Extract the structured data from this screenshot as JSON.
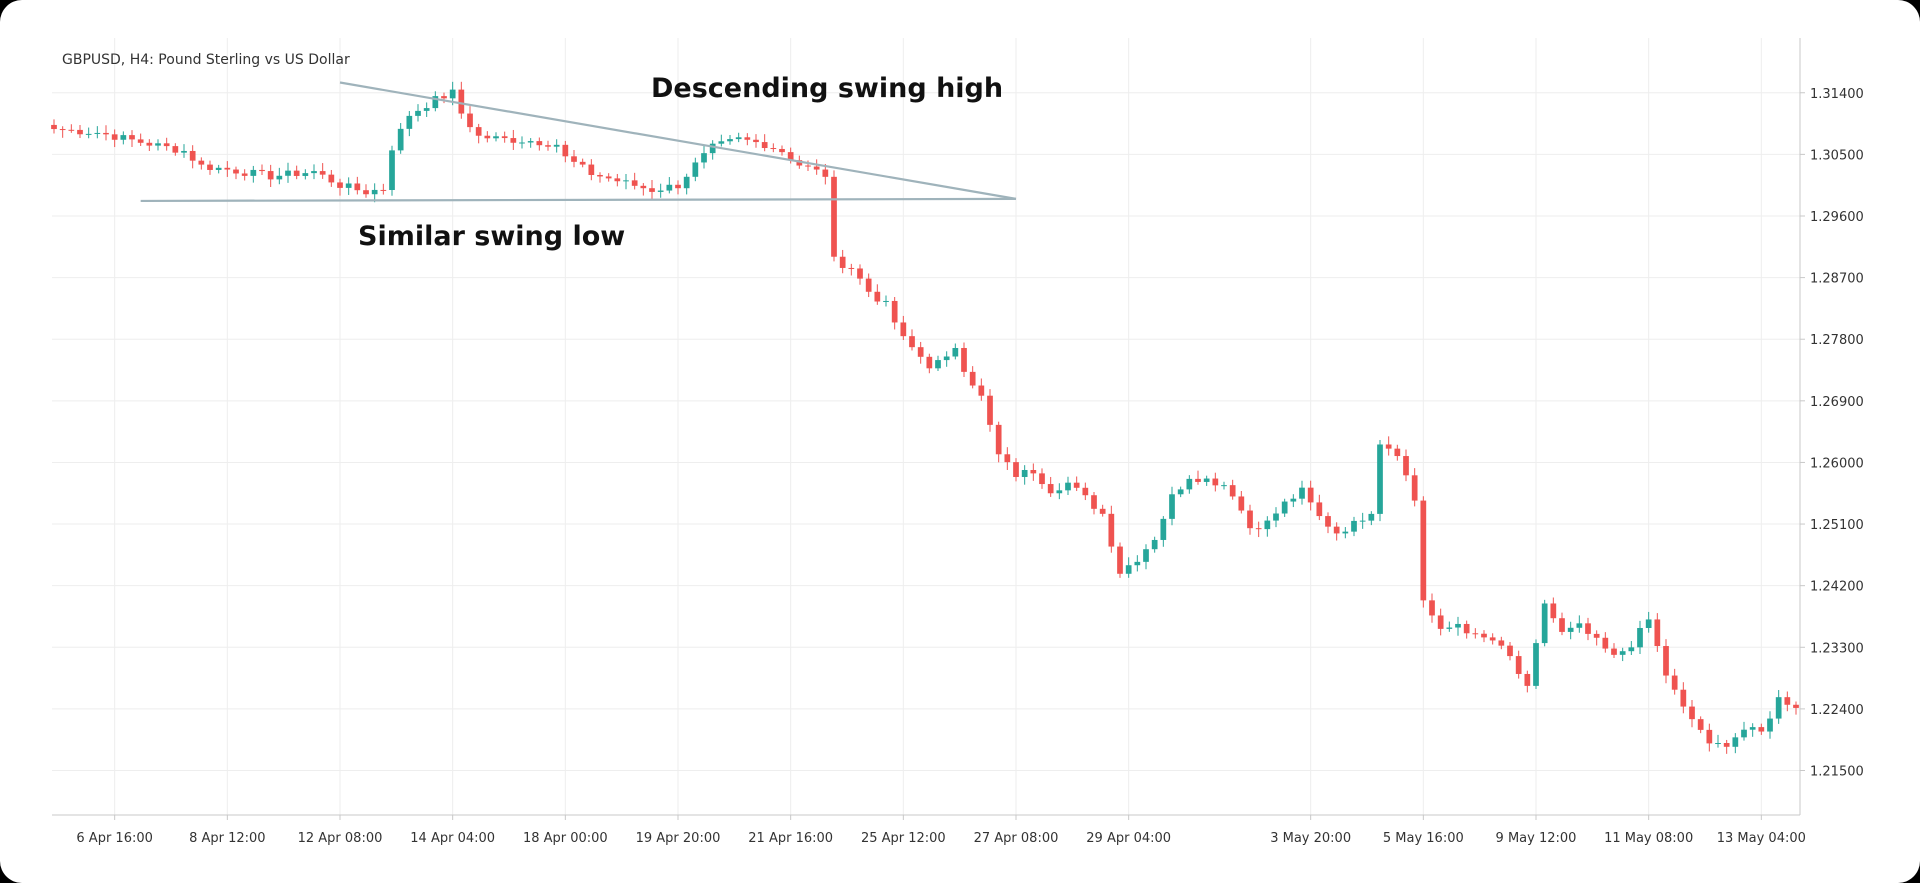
{
  "chart_data": {
    "type": "candlestick",
    "title": "GBPUSD, H4: Pound Sterling vs US Dollar",
    "y_axis": {
      "position": "right",
      "ylim": [
        1.2085,
        1.322
      ],
      "ticks": [
        "1.31400",
        "1.30500",
        "1.29600",
        "1.28700",
        "1.27800",
        "1.26900",
        "1.26000",
        "1.25100",
        "1.24200",
        "1.23300",
        "1.22400",
        "1.21500"
      ]
    },
    "x_axis": {
      "bar_count": 202,
      "ticks": [
        {
          "label": "6 Apr 16:00",
          "bar": 7
        },
        {
          "label": "8 Apr 12:00",
          "bar": 20
        },
        {
          "label": "12 Apr 08:00",
          "bar": 33
        },
        {
          "label": "14 Apr 04:00",
          "bar": 46
        },
        {
          "label": "18 Apr 00:00",
          "bar": 59
        },
        {
          "label": "19 Apr 20:00",
          "bar": 72
        },
        {
          "label": "21 Apr 16:00",
          "bar": 85
        },
        {
          "label": "25 Apr 12:00",
          "bar": 98
        },
        {
          "label": "27 Apr 08:00",
          "bar": 111
        },
        {
          "label": "29 Apr 04:00",
          "bar": 124
        },
        {
          "label": "3 May 20:00",
          "bar": 145
        },
        {
          "label": "5 May 16:00",
          "bar": 158
        },
        {
          "label": "9 May 12:00",
          "bar": 171
        },
        {
          "label": "11 May 08:00",
          "bar": 184
        },
        {
          "label": "13 May 04:00",
          "bar": 197
        }
      ]
    },
    "grid": true,
    "colors": {
      "up": "#26a69a",
      "down": "#ef5350",
      "trendline": "#9fb3bb",
      "grid": "#eeeeee"
    },
    "anchors": [
      [
        0,
        1.3087
      ],
      [
        5,
        1.3082
      ],
      [
        10,
        1.3068
      ],
      [
        15,
        1.3055
      ],
      [
        17,
        1.3033
      ],
      [
        20,
        1.3028
      ],
      [
        25,
        1.3018
      ],
      [
        30,
        1.3025
      ],
      [
        33,
        1.3005
      ],
      [
        36,
        1.2995
      ],
      [
        38,
        1.3
      ],
      [
        39,
        1.306
      ],
      [
        41,
        1.3108
      ],
      [
        44,
        1.313
      ],
      [
        46,
        1.314
      ],
      [
        47,
        1.311
      ],
      [
        49,
        1.3076
      ],
      [
        52,
        1.3072
      ],
      [
        55,
        1.307
      ],
      [
        58,
        1.3065
      ],
      [
        59,
        1.3045
      ],
      [
        62,
        1.3022
      ],
      [
        66,
        1.3008
      ],
      [
        69,
        1.2998
      ],
      [
        72,
        1.3005
      ],
      [
        74,
        1.3035
      ],
      [
        76,
        1.306
      ],
      [
        79,
        1.3072
      ],
      [
        82,
        1.3065
      ],
      [
        84,
        1.3055
      ],
      [
        86,
        1.3035
      ],
      [
        89,
        1.302
      ],
      [
        90,
        1.2895
      ],
      [
        92,
        1.2885
      ],
      [
        94,
        1.285
      ],
      [
        96,
        1.283
      ],
      [
        98,
        1.278
      ],
      [
        101,
        1.2742
      ],
      [
        103,
        1.275
      ],
      [
        104,
        1.277
      ],
      [
        105,
        1.2738
      ],
      [
        107,
        1.2695
      ],
      [
        109,
        1.261
      ],
      [
        111,
        1.2582
      ],
      [
        113,
        1.2588
      ],
      [
        115,
        1.256
      ],
      [
        117,
        1.257
      ],
      [
        119,
        1.2548
      ],
      [
        121,
        1.2525
      ],
      [
        123,
        1.244
      ],
      [
        125,
        1.246
      ],
      [
        127,
        1.249
      ],
      [
        129,
        1.255
      ],
      [
        131,
        1.258
      ],
      [
        133,
        1.2575
      ],
      [
        135,
        1.2568
      ],
      [
        136,
        1.2555
      ],
      [
        138,
        1.2505
      ],
      [
        140,
        1.2512
      ],
      [
        142,
        1.254
      ],
      [
        144,
        1.2558
      ],
      [
        146,
        1.252
      ],
      [
        148,
        1.2498
      ],
      [
        150,
        1.251
      ],
      [
        152,
        1.253
      ],
      [
        153,
        1.263
      ],
      [
        155,
        1.2615
      ],
      [
        157,
        1.2545
      ],
      [
        158,
        1.24
      ],
      [
        160,
        1.2352
      ],
      [
        162,
        1.2365
      ],
      [
        164,
        1.2345
      ],
      [
        166,
        1.234
      ],
      [
        168,
        1.2315
      ],
      [
        170,
        1.2268
      ],
      [
        172,
        1.2395
      ],
      [
        174,
        1.235
      ],
      [
        176,
        1.236
      ],
      [
        178,
        1.2338
      ],
      [
        180,
        1.2315
      ],
      [
        182,
        1.2335
      ],
      [
        184,
        1.237
      ],
      [
        186,
        1.229
      ],
      [
        188,
        1.224
      ],
      [
        190,
        1.221
      ],
      [
        191,
        1.2185
      ],
      [
        193,
        1.219
      ],
      [
        195,
        1.221
      ],
      [
        197,
        1.2205
      ],
      [
        199,
        1.2255
      ],
      [
        201,
        1.2245
      ]
    ],
    "annotations": [
      {
        "text": "Descending swing high"
      },
      {
        "text": "Similar swing low"
      }
    ],
    "trendlines": [
      {
        "name": "descending-swing-high",
        "from": {
          "bar": 33,
          "price": 1.3155
        },
        "to": {
          "bar": 111,
          "price": 1.2985
        }
      },
      {
        "name": "similar-swing-low",
        "from": {
          "bar": 10,
          "price": 1.2982
        },
        "to": {
          "bar": 111,
          "price": 1.2985
        }
      }
    ]
  }
}
